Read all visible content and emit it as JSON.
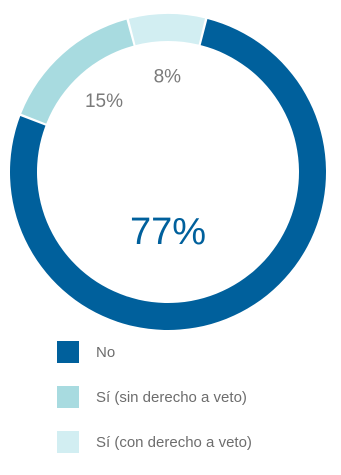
{
  "chart_data": {
    "type": "pie",
    "style": "donut",
    "categories": [
      "No",
      "Sí (sin derecho a veto)",
      "Sí (con derecho a veto)"
    ],
    "values": [
      77,
      15,
      8
    ],
    "value_labels": [
      "77%",
      "15%",
      "8%"
    ],
    "colors": [
      "#00609c",
      "#a8dbe0",
      "#d2eef2"
    ],
    "legend": "bottom"
  }
}
